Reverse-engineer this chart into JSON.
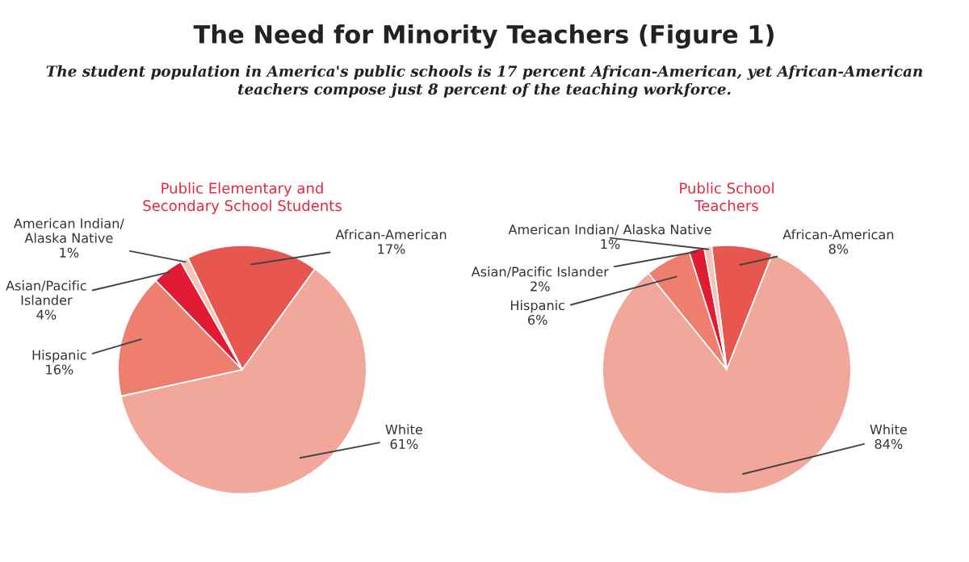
{
  "chart_data": [
    {
      "type": "pie",
      "title": "Public Elementary and\nSecondary School Students",
      "annotations": [
        "The Need for Minority Teachers (Figure 1)",
        "The student population in America's public schools is 17 percent African-American, yet African-American\nteachers compose just 8 percent of the teaching workforce."
      ],
      "categories": [
        "African-American",
        "White",
        "Hispanic",
        "Asian/Pacific\nIslander",
        "American Indian/\nAlaska Native"
      ],
      "values": [
        17,
        61,
        16,
        4,
        1
      ],
      "value_labels": [
        "17%",
        "61%",
        "16%",
        "4%",
        "1%"
      ],
      "colors": [
        "#e8574f",
        "#f2a79b",
        "#ee7e6e",
        "#e21b35",
        "#f5c4b8"
      ]
    },
    {
      "type": "pie",
      "title": "Public School\nTeachers",
      "categories": [
        "African-American",
        "White",
        "Hispanic",
        "Asian/Pacific Islander",
        "American Indian/ Alaska Native"
      ],
      "values": [
        8,
        84,
        6,
        2,
        1
      ],
      "value_labels": [
        "8%",
        "84%",
        "6%",
        "2%",
        "1%"
      ],
      "colors": [
        "#e8574f",
        "#f2a79b",
        "#ee7e6e",
        "#e21b35",
        "#f5c4b8"
      ]
    }
  ]
}
